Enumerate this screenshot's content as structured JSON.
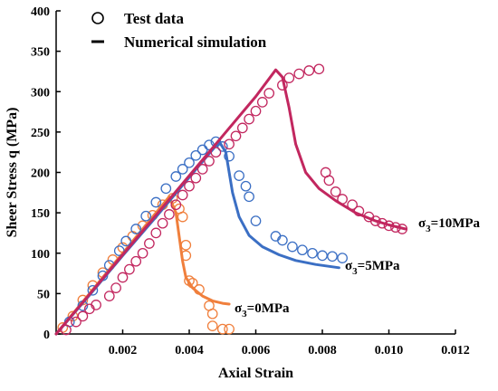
{
  "chart_data": {
    "type": "scatter",
    "title": "",
    "xlabel": "Axial Strain",
    "ylabel": "Sheer Stress q (MPa)",
    "xlim": [
      0,
      0.012
    ],
    "ylim": [
      0,
      400
    ],
    "xticks": [
      "0.002",
      "0.004",
      "0.006",
      "0.008",
      "0.010",
      "0.012"
    ],
    "yticks": [
      "0",
      "50",
      "100",
      "150",
      "200",
      "250",
      "300",
      "350",
      "400"
    ],
    "legend": {
      "placement": "top-left",
      "entries": [
        {
          "label": "Test data",
          "marker": "circle"
        },
        {
          "label": "Numerical simulation",
          "marker": "line"
        }
      ]
    },
    "grid": false,
    "series": [
      {
        "name": "σ3=0MPa",
        "label_main": "σ",
        "label_sub": "3",
        "label_rest": "=0MPa",
        "color": "#f07f3c",
        "test_data": [
          [
            0.0002,
            8
          ],
          [
            0.0005,
            22
          ],
          [
            0.0008,
            42
          ],
          [
            0.0011,
            60
          ],
          [
            0.0014,
            76
          ],
          [
            0.0017,
            92
          ],
          [
            0.002,
            107
          ],
          [
            0.0023,
            121
          ],
          [
            0.0026,
            134
          ],
          [
            0.0029,
            147
          ],
          [
            0.0032,
            160
          ],
          [
            0.0035,
            168
          ],
          [
            0.0037,
            155
          ],
          [
            0.0038,
            145
          ],
          [
            0.0039,
            110
          ],
          [
            0.0039,
            97
          ],
          [
            0.004,
            66
          ],
          [
            0.0041,
            63
          ],
          [
            0.0043,
            55
          ],
          [
            0.0046,
            35
          ],
          [
            0.0047,
            25
          ],
          [
            0.0047,
            10
          ],
          [
            0.005,
            6
          ],
          [
            0.0052,
            6
          ]
        ],
        "simulation": [
          [
            0.0,
            0
          ],
          [
            0.001,
            50
          ],
          [
            0.002,
            100
          ],
          [
            0.003,
            150
          ],
          [
            0.0034,
            170
          ],
          [
            0.0036,
            150
          ],
          [
            0.0037,
            120
          ],
          [
            0.0038,
            90
          ],
          [
            0.0039,
            70
          ],
          [
            0.0041,
            57
          ],
          [
            0.0044,
            47
          ],
          [
            0.0047,
            41
          ],
          [
            0.005,
            38
          ],
          [
            0.0052,
            37
          ]
        ]
      },
      {
        "name": "σ3=5MPa",
        "label_main": "σ",
        "label_sub": "3",
        "label_rest": "=5MPa",
        "color": "#3b6fc4",
        "test_data": [
          [
            0.0004,
            15
          ],
          [
            0.0008,
            35
          ],
          [
            0.0011,
            54
          ],
          [
            0.0014,
            72
          ],
          [
            0.0016,
            85
          ],
          [
            0.0019,
            103
          ],
          [
            0.0021,
            115
          ],
          [
            0.0024,
            130
          ],
          [
            0.0027,
            146
          ],
          [
            0.003,
            163
          ],
          [
            0.0033,
            180
          ],
          [
            0.0036,
            195
          ],
          [
            0.0038,
            204
          ],
          [
            0.004,
            212
          ],
          [
            0.0042,
            221
          ],
          [
            0.0044,
            228
          ],
          [
            0.0046,
            234
          ],
          [
            0.0048,
            238
          ],
          [
            0.005,
            232
          ],
          [
            0.0052,
            220
          ],
          [
            0.0055,
            196
          ],
          [
            0.0057,
            183
          ],
          [
            0.0058,
            170
          ],
          [
            0.006,
            140
          ],
          [
            0.0066,
            121
          ],
          [
            0.0068,
            116
          ],
          [
            0.0071,
            108
          ],
          [
            0.0074,
            104
          ],
          [
            0.0077,
            100
          ],
          [
            0.008,
            97
          ],
          [
            0.0083,
            96
          ],
          [
            0.0086,
            94
          ]
        ],
        "simulation": [
          [
            0.0,
            0
          ],
          [
            0.001,
            48
          ],
          [
            0.002,
            97
          ],
          [
            0.003,
            145
          ],
          [
            0.004,
            194
          ],
          [
            0.0049,
            238
          ],
          [
            0.0051,
            225
          ],
          [
            0.0053,
            175
          ],
          [
            0.0055,
            145
          ],
          [
            0.0058,
            122
          ],
          [
            0.0062,
            108
          ],
          [
            0.0067,
            98
          ],
          [
            0.0072,
            91
          ],
          [
            0.0078,
            86
          ],
          [
            0.0085,
            82
          ]
        ]
      },
      {
        "name": "σ3=10MPa",
        "label_main": "σ",
        "label_sub": "3",
        "label_rest": "=10MPa",
        "color": "#c2275f",
        "test_data": [
          [
            0.0003,
            5
          ],
          [
            0.0006,
            15
          ],
          [
            0.0008,
            22
          ],
          [
            0.001,
            31
          ],
          [
            0.0012,
            36
          ],
          [
            0.0016,
            47
          ],
          [
            0.0018,
            57
          ],
          [
            0.002,
            70
          ],
          [
            0.0022,
            80
          ],
          [
            0.0024,
            90
          ],
          [
            0.0026,
            100
          ],
          [
            0.0028,
            112
          ],
          [
            0.003,
            125
          ],
          [
            0.0032,
            137
          ],
          [
            0.0034,
            148
          ],
          [
            0.0036,
            160
          ],
          [
            0.0038,
            172
          ],
          [
            0.004,
            183
          ],
          [
            0.0042,
            193
          ],
          [
            0.0044,
            204
          ],
          [
            0.0046,
            214
          ],
          [
            0.0048,
            225
          ],
          [
            0.0052,
            235
          ],
          [
            0.0054,
            245
          ],
          [
            0.0056,
            255
          ],
          [
            0.0058,
            266
          ],
          [
            0.006,
            276
          ],
          [
            0.0062,
            287
          ],
          [
            0.0064,
            298
          ],
          [
            0.0068,
            308
          ],
          [
            0.007,
            317
          ],
          [
            0.0073,
            322
          ],
          [
            0.0076,
            326
          ],
          [
            0.0079,
            328
          ],
          [
            0.0081,
            200
          ],
          [
            0.0082,
            190
          ],
          [
            0.0084,
            176
          ],
          [
            0.0086,
            167
          ],
          [
            0.0089,
            160
          ],
          [
            0.0091,
            152
          ],
          [
            0.0094,
            145
          ],
          [
            0.0096,
            140
          ],
          [
            0.0098,
            137
          ],
          [
            0.01,
            134
          ],
          [
            0.0102,
            132
          ],
          [
            0.0104,
            130
          ]
        ],
        "simulation": [
          [
            0.0,
            0
          ],
          [
            0.001,
            49
          ],
          [
            0.002,
            98
          ],
          [
            0.003,
            147
          ],
          [
            0.004,
            196
          ],
          [
            0.005,
            245
          ],
          [
            0.006,
            294
          ],
          [
            0.0066,
            327
          ],
          [
            0.0068,
            318
          ],
          [
            0.007,
            280
          ],
          [
            0.0072,
            235
          ],
          [
            0.0075,
            200
          ],
          [
            0.0079,
            180
          ],
          [
            0.0084,
            165
          ],
          [
            0.009,
            150
          ],
          [
            0.0096,
            140
          ],
          [
            0.01,
            135
          ],
          [
            0.0105,
            130
          ]
        ]
      }
    ]
  }
}
